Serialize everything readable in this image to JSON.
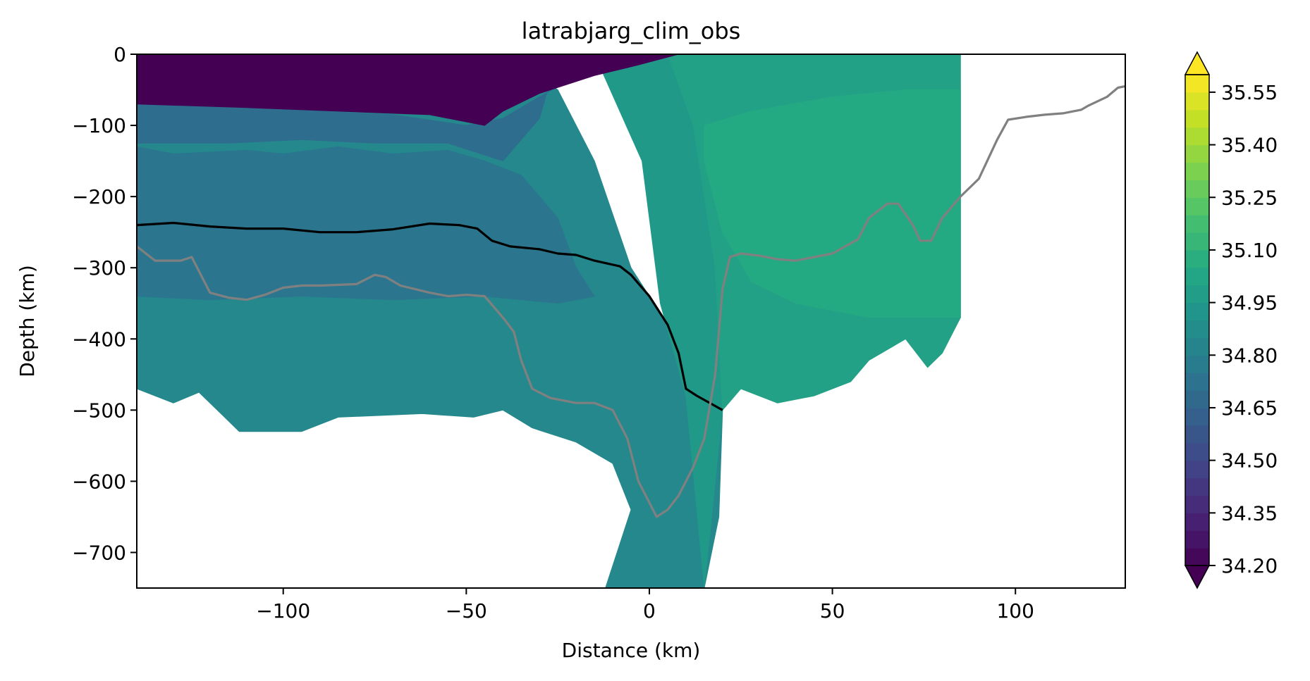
{
  "chart_data": {
    "type": "heatmap",
    "title": "latrabjarg_clim_obs",
    "xlabel": "Distance (km)",
    "ylabel": "Depth (km)",
    "xlim": [
      -140,
      130
    ],
    "ylim": [
      -750,
      0
    ],
    "x_ticks": [
      -100,
      -50,
      0,
      50,
      100
    ],
    "x_tick_labels": [
      "−100",
      "−50",
      "0",
      "50",
      "100"
    ],
    "y_ticks": [
      0,
      -100,
      -200,
      -300,
      -400,
      -500,
      -600,
      -700
    ],
    "y_tick_labels": [
      "0",
      "−100",
      "−200",
      "−300",
      "−400",
      "−500",
      "−600",
      "−700"
    ],
    "grid": false,
    "colorbar": {
      "min": 34.2,
      "max": 35.6,
      "step": 0.05,
      "extend": "both",
      "ticks": [
        34.2,
        34.35,
        34.5,
        34.65,
        34.8,
        34.95,
        35.1,
        35.25,
        35.4,
        35.55
      ],
      "tick_labels": [
        "34.20",
        "34.35",
        "34.50",
        "34.65",
        "34.80",
        "34.95",
        "35.10",
        "35.25",
        "35.40",
        "35.55"
      ]
    },
    "field_regions": [
      {
        "value": 34.85,
        "polygon": [
          [
            -140,
            0
          ],
          [
            -140,
            -470
          ],
          [
            -130,
            -490
          ],
          [
            -123,
            -475
          ],
          [
            -118,
            -500
          ],
          [
            -112,
            -530
          ],
          [
            -95,
            -530
          ],
          [
            -85,
            -510
          ],
          [
            -62,
            -505
          ],
          [
            -48,
            -510
          ],
          [
            -40,
            -500
          ],
          [
            -32,
            -525
          ],
          [
            -20,
            -545
          ],
          [
            -10,
            -575
          ],
          [
            -5,
            -640
          ],
          [
            -12,
            -750
          ],
          [
            15,
            -750
          ],
          [
            19,
            -650
          ],
          [
            20,
            -500
          ],
          [
            10,
            -420
          ],
          [
            -5,
            -300
          ],
          [
            -15,
            -150
          ],
          [
            -25,
            -50
          ],
          [
            -40,
            0
          ]
        ]
      },
      {
        "value": 34.95,
        "polygon": [
          [
            -15,
            0
          ],
          [
            -2,
            -150
          ],
          [
            3,
            -350
          ],
          [
            10,
            -480
          ],
          [
            15,
            -750
          ],
          [
            20,
            -500
          ],
          [
            18,
            -300
          ],
          [
            12,
            -100
          ],
          [
            5,
            0
          ]
        ]
      },
      {
        "value": 35.0,
        "polygon": [
          [
            5,
            0
          ],
          [
            12,
            -100
          ],
          [
            18,
            -300
          ],
          [
            20,
            -500
          ],
          [
            25,
            -470
          ],
          [
            35,
            -490
          ],
          [
            45,
            -480
          ],
          [
            55,
            -460
          ],
          [
            60,
            -430
          ],
          [
            70,
            -400
          ],
          [
            76,
            -440
          ],
          [
            80,
            -420
          ],
          [
            85,
            -370
          ],
          [
            85,
            0
          ]
        ]
      },
      {
        "value": 35.05,
        "polygon": [
          [
            15,
            -100
          ],
          [
            28,
            -80
          ],
          [
            50,
            -60
          ],
          [
            70,
            -50
          ],
          [
            85,
            -50
          ],
          [
            85,
            -370
          ],
          [
            60,
            -370
          ],
          [
            40,
            -350
          ],
          [
            28,
            -320
          ],
          [
            20,
            -250
          ],
          [
            15,
            -150
          ]
        ]
      },
      {
        "value": 34.75,
        "polygon": [
          [
            -140,
            -130
          ],
          [
            -130,
            -140
          ],
          [
            -110,
            -135
          ],
          [
            -100,
            -140
          ],
          [
            -85,
            -130
          ],
          [
            -70,
            -140
          ],
          [
            -55,
            -135
          ],
          [
            -45,
            -150
          ],
          [
            -35,
            -170
          ],
          [
            -25,
            -230
          ],
          [
            -20,
            -300
          ],
          [
            -15,
            -340
          ],
          [
            -25,
            -350
          ],
          [
            -45,
            -340
          ],
          [
            -70,
            -345
          ],
          [
            -95,
            -340
          ],
          [
            -120,
            -345
          ],
          [
            -140,
            -340
          ]
        ]
      },
      {
        "value": 34.7,
        "polygon": [
          [
            -140,
            -70
          ],
          [
            -125,
            -70
          ],
          [
            -110,
            -75
          ],
          [
            -90,
            -80
          ],
          [
            -70,
            -85
          ],
          [
            -50,
            -100
          ],
          [
            -40,
            -90
          ],
          [
            -30,
            -60
          ],
          [
            -20,
            -30
          ],
          [
            -10,
            0
          ],
          [
            -25,
            0
          ],
          [
            -30,
            -90
          ],
          [
            -40,
            -150
          ],
          [
            -55,
            -125
          ],
          [
            -75,
            -125
          ],
          [
            -95,
            -120
          ],
          [
            -115,
            -125
          ],
          [
            -140,
            -125
          ]
        ]
      },
      {
        "value": 34.2,
        "polygon": [
          [
            -140,
            0
          ],
          [
            -140,
            -70
          ],
          [
            -110,
            -75
          ],
          [
            -85,
            -80
          ],
          [
            -60,
            -85
          ],
          [
            -45,
            -100
          ],
          [
            -40,
            -80
          ],
          [
            -30,
            -55
          ],
          [
            -15,
            -30
          ],
          [
            -3,
            -15
          ],
          [
            8,
            0
          ]
        ]
      }
    ],
    "series": [
      {
        "color": "#000000",
        "points": [
          [
            -140,
            -240
          ],
          [
            -130,
            -237
          ],
          [
            -120,
            -242
          ],
          [
            -110,
            -245
          ],
          [
            -100,
            -245
          ],
          [
            -90,
            -250
          ],
          [
            -80,
            -250
          ],
          [
            -70,
            -246
          ],
          [
            -60,
            -238
          ],
          [
            -52,
            -240
          ],
          [
            -47,
            -245
          ],
          [
            -43,
            -262
          ],
          [
            -38,
            -270
          ],
          [
            -30,
            -274
          ],
          [
            -25,
            -280
          ],
          [
            -20,
            -282
          ],
          [
            -15,
            -290
          ],
          [
            -8,
            -298
          ],
          [
            -5,
            -310
          ],
          [
            0,
            -340
          ],
          [
            5,
            -380
          ],
          [
            8,
            -420
          ],
          [
            10,
            -470
          ],
          [
            13,
            -480
          ],
          [
            20,
            -500
          ]
        ]
      },
      {
        "color": "#808080",
        "points": [
          [
            -140,
            -270
          ],
          [
            -135,
            -290
          ],
          [
            -128,
            -290
          ],
          [
            -125,
            -285
          ],
          [
            -120,
            -335
          ],
          [
            -115,
            -342
          ],
          [
            -110,
            -345
          ],
          [
            -105,
            -338
          ],
          [
            -100,
            -328
          ],
          [
            -95,
            -325
          ],
          [
            -90,
            -325
          ],
          [
            -80,
            -323
          ],
          [
            -75,
            -310
          ],
          [
            -72,
            -313
          ],
          [
            -68,
            -325
          ],
          [
            -60,
            -335
          ],
          [
            -55,
            -340
          ],
          [
            -50,
            -338
          ],
          [
            -45,
            -340
          ],
          [
            -40,
            -370
          ],
          [
            -37,
            -390
          ],
          [
            -35,
            -430
          ],
          [
            -32,
            -470
          ],
          [
            -27,
            -483
          ],
          [
            -20,
            -490
          ],
          [
            -15,
            -490
          ],
          [
            -10,
            -500
          ],
          [
            -6,
            -540
          ],
          [
            -3,
            -600
          ],
          [
            0,
            -630
          ],
          [
            2,
            -650
          ],
          [
            5,
            -640
          ],
          [
            8,
            -620
          ],
          [
            12,
            -580
          ],
          [
            15,
            -540
          ],
          [
            18,
            -450
          ],
          [
            20,
            -330
          ],
          [
            22,
            -285
          ],
          [
            25,
            -280
          ],
          [
            30,
            -283
          ],
          [
            35,
            -288
          ],
          [
            40,
            -290
          ],
          [
            50,
            -280
          ],
          [
            57,
            -260
          ],
          [
            60,
            -230
          ],
          [
            65,
            -210
          ],
          [
            68,
            -210
          ],
          [
            72,
            -240
          ],
          [
            74,
            -262
          ],
          [
            77,
            -262
          ],
          [
            80,
            -230
          ],
          [
            85,
            -200
          ],
          [
            90,
            -175
          ],
          [
            95,
            -120
          ],
          [
            98,
            -92
          ],
          [
            103,
            -88
          ],
          [
            108,
            -85
          ],
          [
            113,
            -83
          ],
          [
            118,
            -78
          ],
          [
            120,
            -72
          ],
          [
            125,
            -60
          ],
          [
            128,
            -47
          ],
          [
            130,
            -45
          ]
        ]
      }
    ]
  }
}
